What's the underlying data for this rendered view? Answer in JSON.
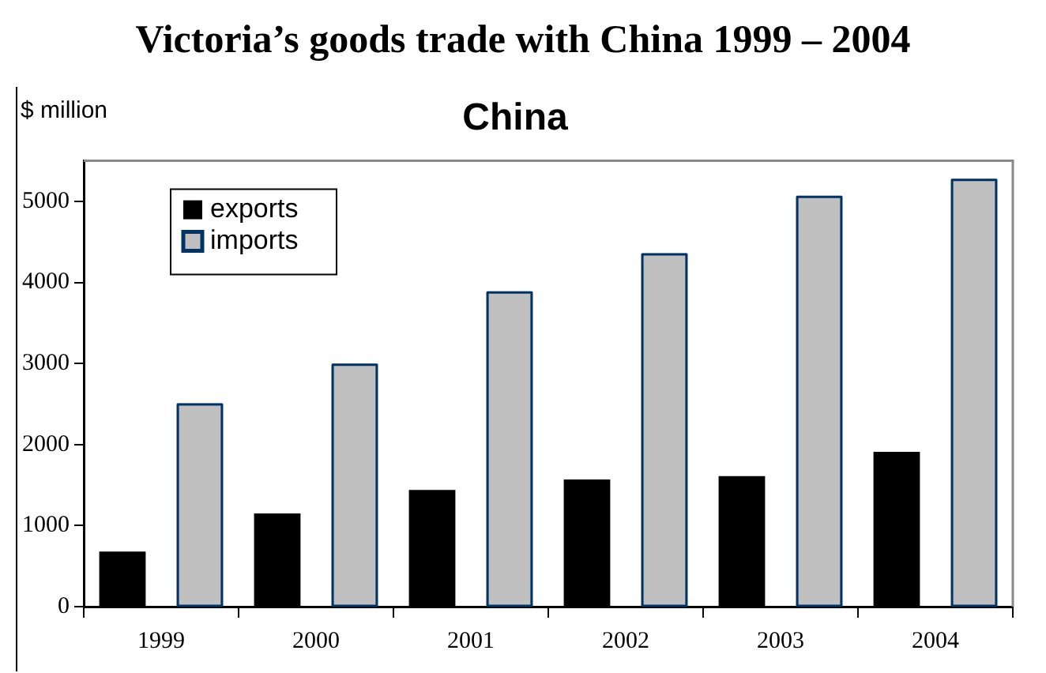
{
  "chart_data": {
    "type": "bar",
    "title": "Victoria’s goods trade with China 1999 – 2004",
    "subtitle": "China",
    "ylabel": "$ million",
    "categories": [
      "1999",
      "2000",
      "2001",
      "2002",
      "2003",
      "2004"
    ],
    "series": [
      {
        "name": "exports",
        "color": "#000000",
        "values": [
          680,
          1150,
          1440,
          1570,
          1610,
          1910
        ]
      },
      {
        "name": "imports",
        "color": "#c0c0c0",
        "values": [
          2510,
          3000,
          3890,
          4360,
          5070,
          5280
        ]
      }
    ],
    "ylim": [
      0,
      5500
    ],
    "yticks": [
      0,
      1000,
      2000,
      3000,
      4000,
      5000
    ],
    "grid": false,
    "legend": "top left"
  }
}
